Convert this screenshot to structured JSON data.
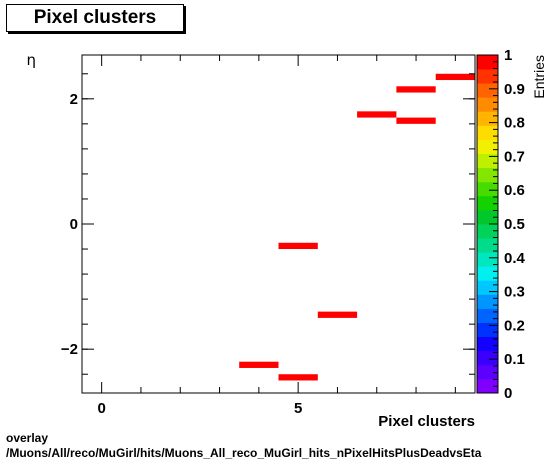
{
  "title": "Pixel clusters",
  "footer": {
    "line1": "overlay",
    "line2": "/Muons/All/reco/MuGirl/hits/Muons_All_reco_MuGirl_hits_nPixelHitsPlusDeadvsEta"
  },
  "chart_data": {
    "type": "heatmap",
    "title": "Pixel clusters",
    "xlabel": "Pixel clusters",
    "ylabel": "η",
    "zlabel": "Entries",
    "xlim": [
      -0.5,
      9.5
    ],
    "ylim": [
      -2.7,
      2.7
    ],
    "zlim": [
      0,
      1
    ],
    "x_ticks": [
      0,
      5
    ],
    "y_ticks": [
      -2,
      0,
      2
    ],
    "z_ticks": [
      "0",
      "0.1",
      "0.2",
      "0.3",
      "0.4",
      "0.5",
      "0.6",
      "0.7",
      "0.8",
      "0.9",
      "1"
    ],
    "bin_width_x": 1,
    "bin_height_y": 0.1,
    "cells": [
      {
        "x": 4,
        "y": -2.25,
        "value": 1
      },
      {
        "x": 5,
        "y": -2.45,
        "value": 1
      },
      {
        "x": 5,
        "y": -0.35,
        "value": 1
      },
      {
        "x": 6,
        "y": -1.45,
        "value": 1
      },
      {
        "x": 7,
        "y": 1.75,
        "value": 1
      },
      {
        "x": 8,
        "y": 1.65,
        "value": 1
      },
      {
        "x": 8,
        "y": 2.15,
        "value": 1
      },
      {
        "x": 9,
        "y": 2.35,
        "value": 1
      }
    ],
    "palette": [
      "#7f00ff",
      "#5c00ff",
      "#3a00ff",
      "#1400ff",
      "#0032ff",
      "#0064ff",
      "#0096ff",
      "#00c8ff",
      "#00f0f0",
      "#00e6be",
      "#00dc8c",
      "#00d25a",
      "#00c82a",
      "#14d200",
      "#46dc00",
      "#82e600",
      "#bef000",
      "#f0f000",
      "#ffdc00",
      "#ffb400",
      "#ff8c00",
      "#ff6400",
      "#ff3200",
      "#ff0000"
    ],
    "grid": false,
    "legend": "color-bar right"
  }
}
